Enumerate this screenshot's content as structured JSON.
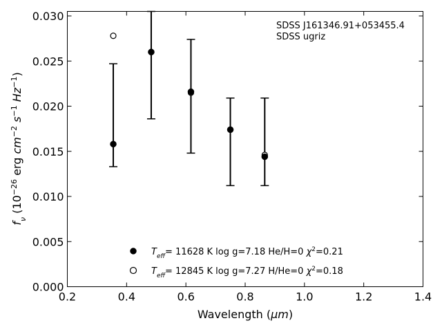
{
  "chart_data": {
    "type": "scatter",
    "xlabel": {
      "base": "Wavelength (",
      "unit": "μm",
      "close": ")"
    },
    "ylabel": {
      "parts": [
        {
          "t": "f",
          "style": "italic"
        },
        {
          "t": "ν",
          "style": "italic-sub"
        },
        {
          "t": " (10"
        },
        {
          "t": "−26",
          "style": "sup"
        },
        {
          "t": " erg "
        },
        {
          "t": "cm",
          "style": "italic"
        },
        {
          "t": "−2",
          "style": "sup"
        },
        {
          "t": " "
        },
        {
          "t": "s",
          "style": "italic"
        },
        {
          "t": "−1",
          "style": "sup"
        },
        {
          "t": " "
        },
        {
          "t": "Hz",
          "style": "italic"
        },
        {
          "t": "−1",
          "style": "sup"
        },
        {
          "t": ")"
        }
      ]
    },
    "xlim": [
      0.2,
      1.4
    ],
    "ylim": [
      0,
      0.0305
    ],
    "x_ticks": [
      "0.2",
      "0.4",
      "0.6",
      "0.8",
      "1.0",
      "1.2",
      "1.4"
    ],
    "y_ticks": [
      "0.000",
      "0.005",
      "0.010",
      "0.015",
      "0.020",
      "0.025",
      "0.030"
    ],
    "annotation": [
      "SDSS J161346.91+053455.4",
      "SDSS ugriz"
    ],
    "observed": {
      "x": [
        0.355,
        0.483,
        0.617,
        0.75,
        0.866
      ],
      "y": [
        0.0158,
        0.026,
        0.0215,
        0.0174,
        0.0145
      ],
      "err_low": [
        0.0133,
        0.0186,
        0.0148,
        0.0112,
        0.0112
      ],
      "err_high": [
        0.0247,
        0.0305,
        0.0274,
        0.0209,
        0.0209
      ]
    },
    "series": [
      {
        "marker": "filled-circle",
        "x": [
          0.355,
          0.483,
          0.617,
          0.75,
          0.866
        ],
        "y": [
          0.0158,
          0.026,
          0.0216,
          0.0174,
          0.0144
        ],
        "legend": {
          "T": "T",
          "sub": "eff",
          "teff": "= 11628 K",
          "logg": "log g=7.18",
          "comp": "He/H=0",
          "chi": "χ",
          "chi_sup": "2",
          "chi_val": "=0.21"
        }
      },
      {
        "marker": "open-circle",
        "x": [
          0.355,
          0.483,
          0.617,
          0.75,
          0.866
        ],
        "y": [
          0.0278,
          0.026,
          0.0215,
          0.0174,
          0.0146
        ],
        "legend": {
          "T": "T",
          "sub": "eff",
          "teff": "= 12845 K",
          "logg": "log g=7.27",
          "comp": "H/He=0",
          "chi": "χ",
          "chi_sup": "2",
          "chi_val": "=0.18"
        }
      }
    ],
    "legend_position": "bottom-center",
    "grid": false
  }
}
